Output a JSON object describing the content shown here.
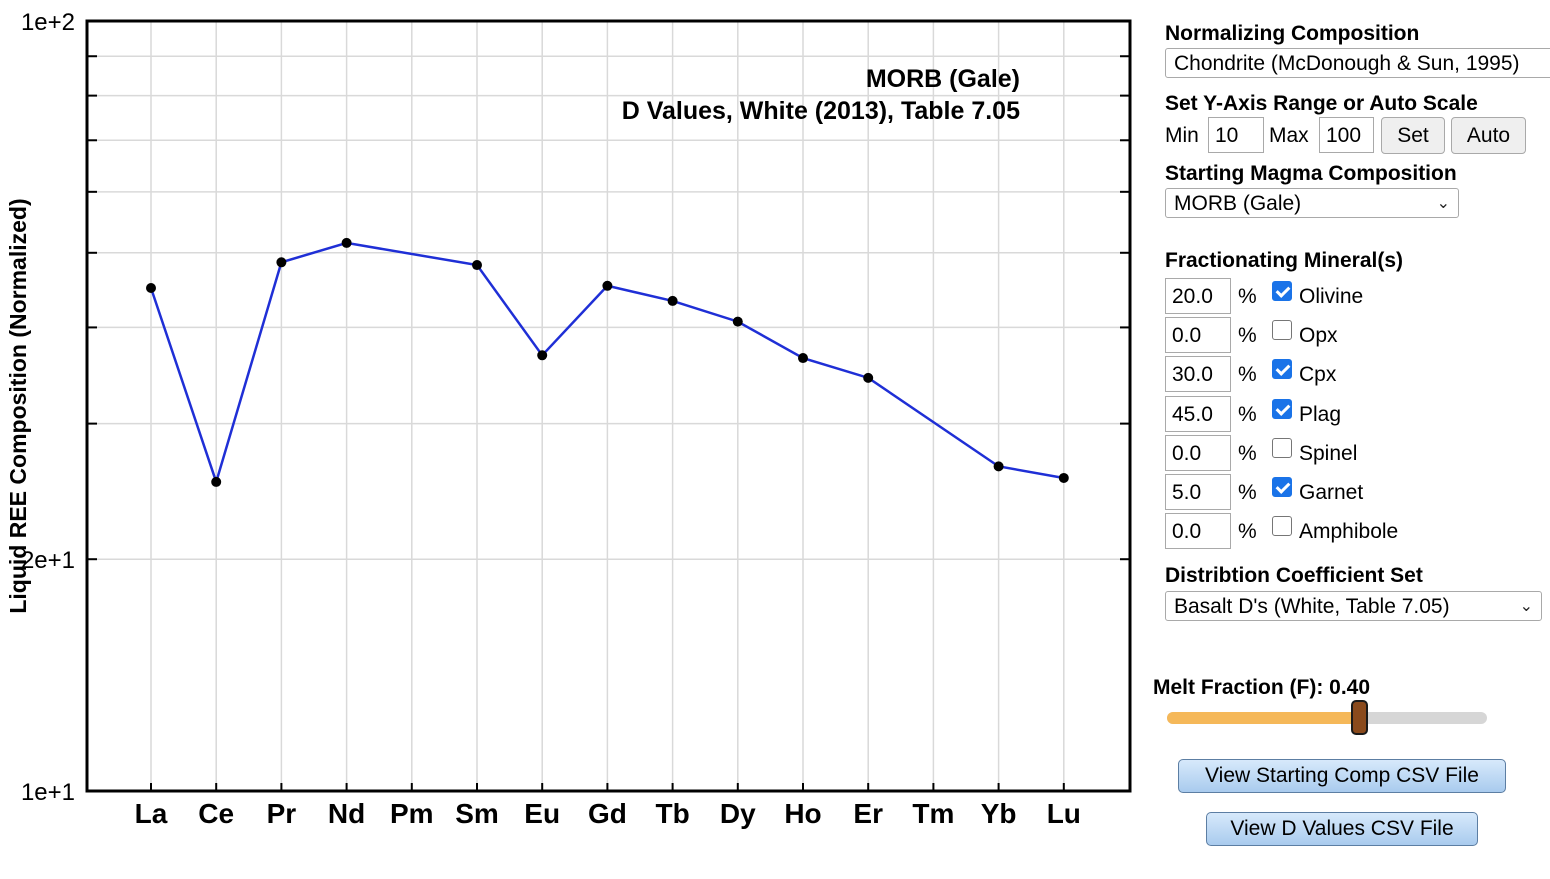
{
  "chart_data": {
    "type": "line",
    "title": "MORB (Gale)",
    "subtitle": "D Values, White (2013), Table 7.05",
    "ylabel": "Liquid REE Composition (Normalized)",
    "xlabel": "",
    "yscale": "log",
    "ylim": [
      10,
      100
    ],
    "ytick_labels": [
      "1e+1",
      "2e+1",
      "1e+2"
    ],
    "categories": [
      "La",
      "Ce",
      "Pr",
      "Nd",
      "Pm",
      "Sm",
      "Eu",
      "Gd",
      "Tb",
      "Dy",
      "Ho",
      "Er",
      "Tm",
      "Yb",
      "Lu"
    ],
    "values": [
      45.0,
      25.2,
      48.6,
      51.5,
      null,
      48.2,
      36.8,
      45.3,
      43.3,
      40.7,
      36.5,
      34.4,
      null,
      26.4,
      25.5
    ],
    "line_color": "#1f2fd6",
    "marker_color": "#000000",
    "grid": true,
    "legend": "none"
  },
  "controls": {
    "normalizing_title": "Normalizing Composition",
    "normalizing_value": "Chondrite (McDonough & Sun, 1995)",
    "yrange_title": "Set Y-Axis Range or Auto Scale",
    "min_label": "Min",
    "min_value": "10",
    "max_label": "Max",
    "max_value": "100",
    "set_label": "Set",
    "auto_label": "Auto",
    "magma_title": "Starting Magma Composition",
    "magma_value": "MORB (Gale)",
    "minerals_title": "Fractionating Mineral(s)",
    "minerals": [
      {
        "percent": "20.0",
        "name": "Olivine",
        "checked": true
      },
      {
        "percent": "0.0",
        "name": "Opx",
        "checked": false
      },
      {
        "percent": "30.0",
        "name": "Cpx",
        "checked": true
      },
      {
        "percent": "45.0",
        "name": "Plag",
        "checked": true
      },
      {
        "percent": "0.0",
        "name": "Spinel",
        "checked": false
      },
      {
        "percent": "5.0",
        "name": "Garnet",
        "checked": true
      },
      {
        "percent": "0.0",
        "name": "Amphibole",
        "checked": false
      }
    ],
    "percent_sign": "%",
    "dset_title": "Distribtion Coefficient Set",
    "dset_value": "Basalt D's (White, Table 7.05)",
    "melt_label": "Melt Fraction (F): 0.40",
    "melt_fraction": 0.4,
    "view_start_label": "View Starting Comp CSV File",
    "view_d_label": "View D Values CSV File",
    "slider_color": "#f5b859",
    "handle_color": "#8a4a1c"
  }
}
